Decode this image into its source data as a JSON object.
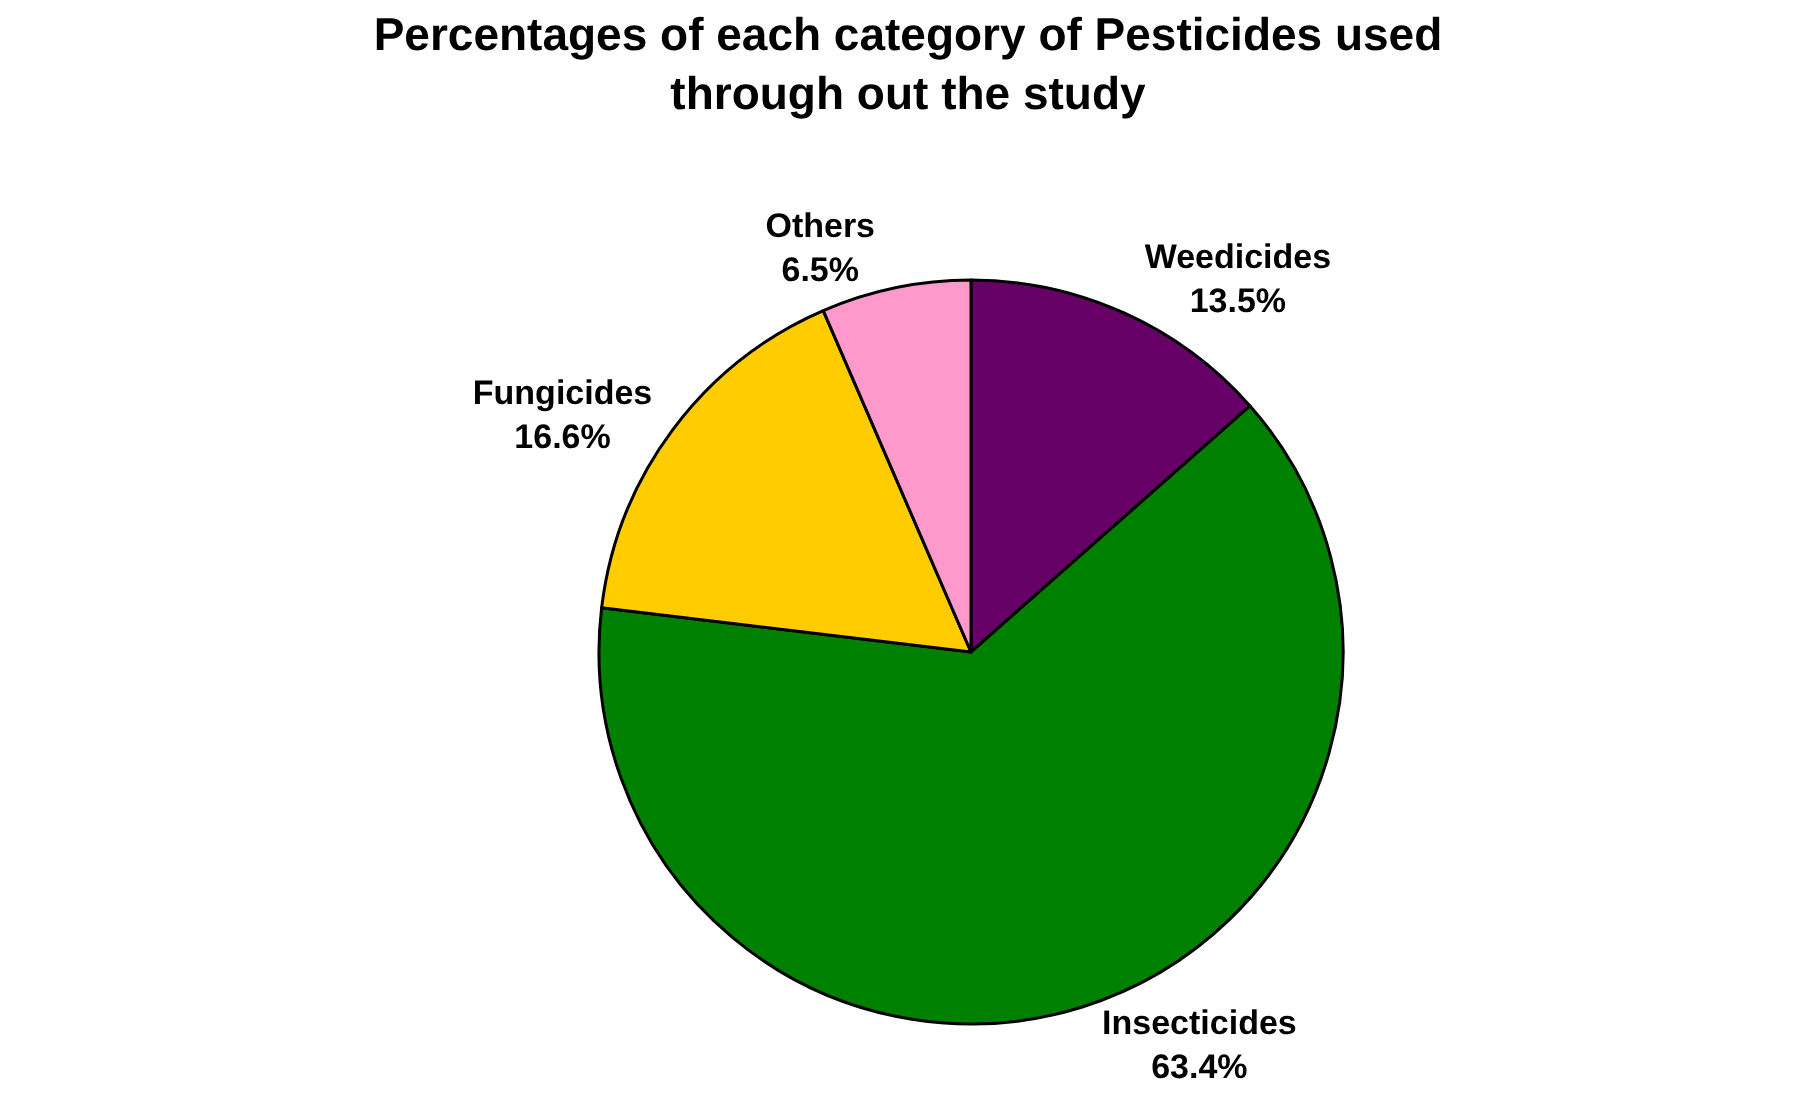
{
  "chart_data": {
    "type": "pie",
    "title": "Percentages of each category of Pesticides used\nthrough out the study",
    "categories": [
      "Weedicides",
      "Insecticides",
      "Fungicides",
      "Others"
    ],
    "values": [
      13.5,
      63.4,
      16.6,
      6.5
    ],
    "value_labels": [
      "13.5%",
      "63.4%",
      "16.6%",
      "6.5%"
    ],
    "colors": [
      "#660066",
      "#008000",
      "#ffcc00",
      "#ff99cc"
    ],
    "legend": false
  }
}
